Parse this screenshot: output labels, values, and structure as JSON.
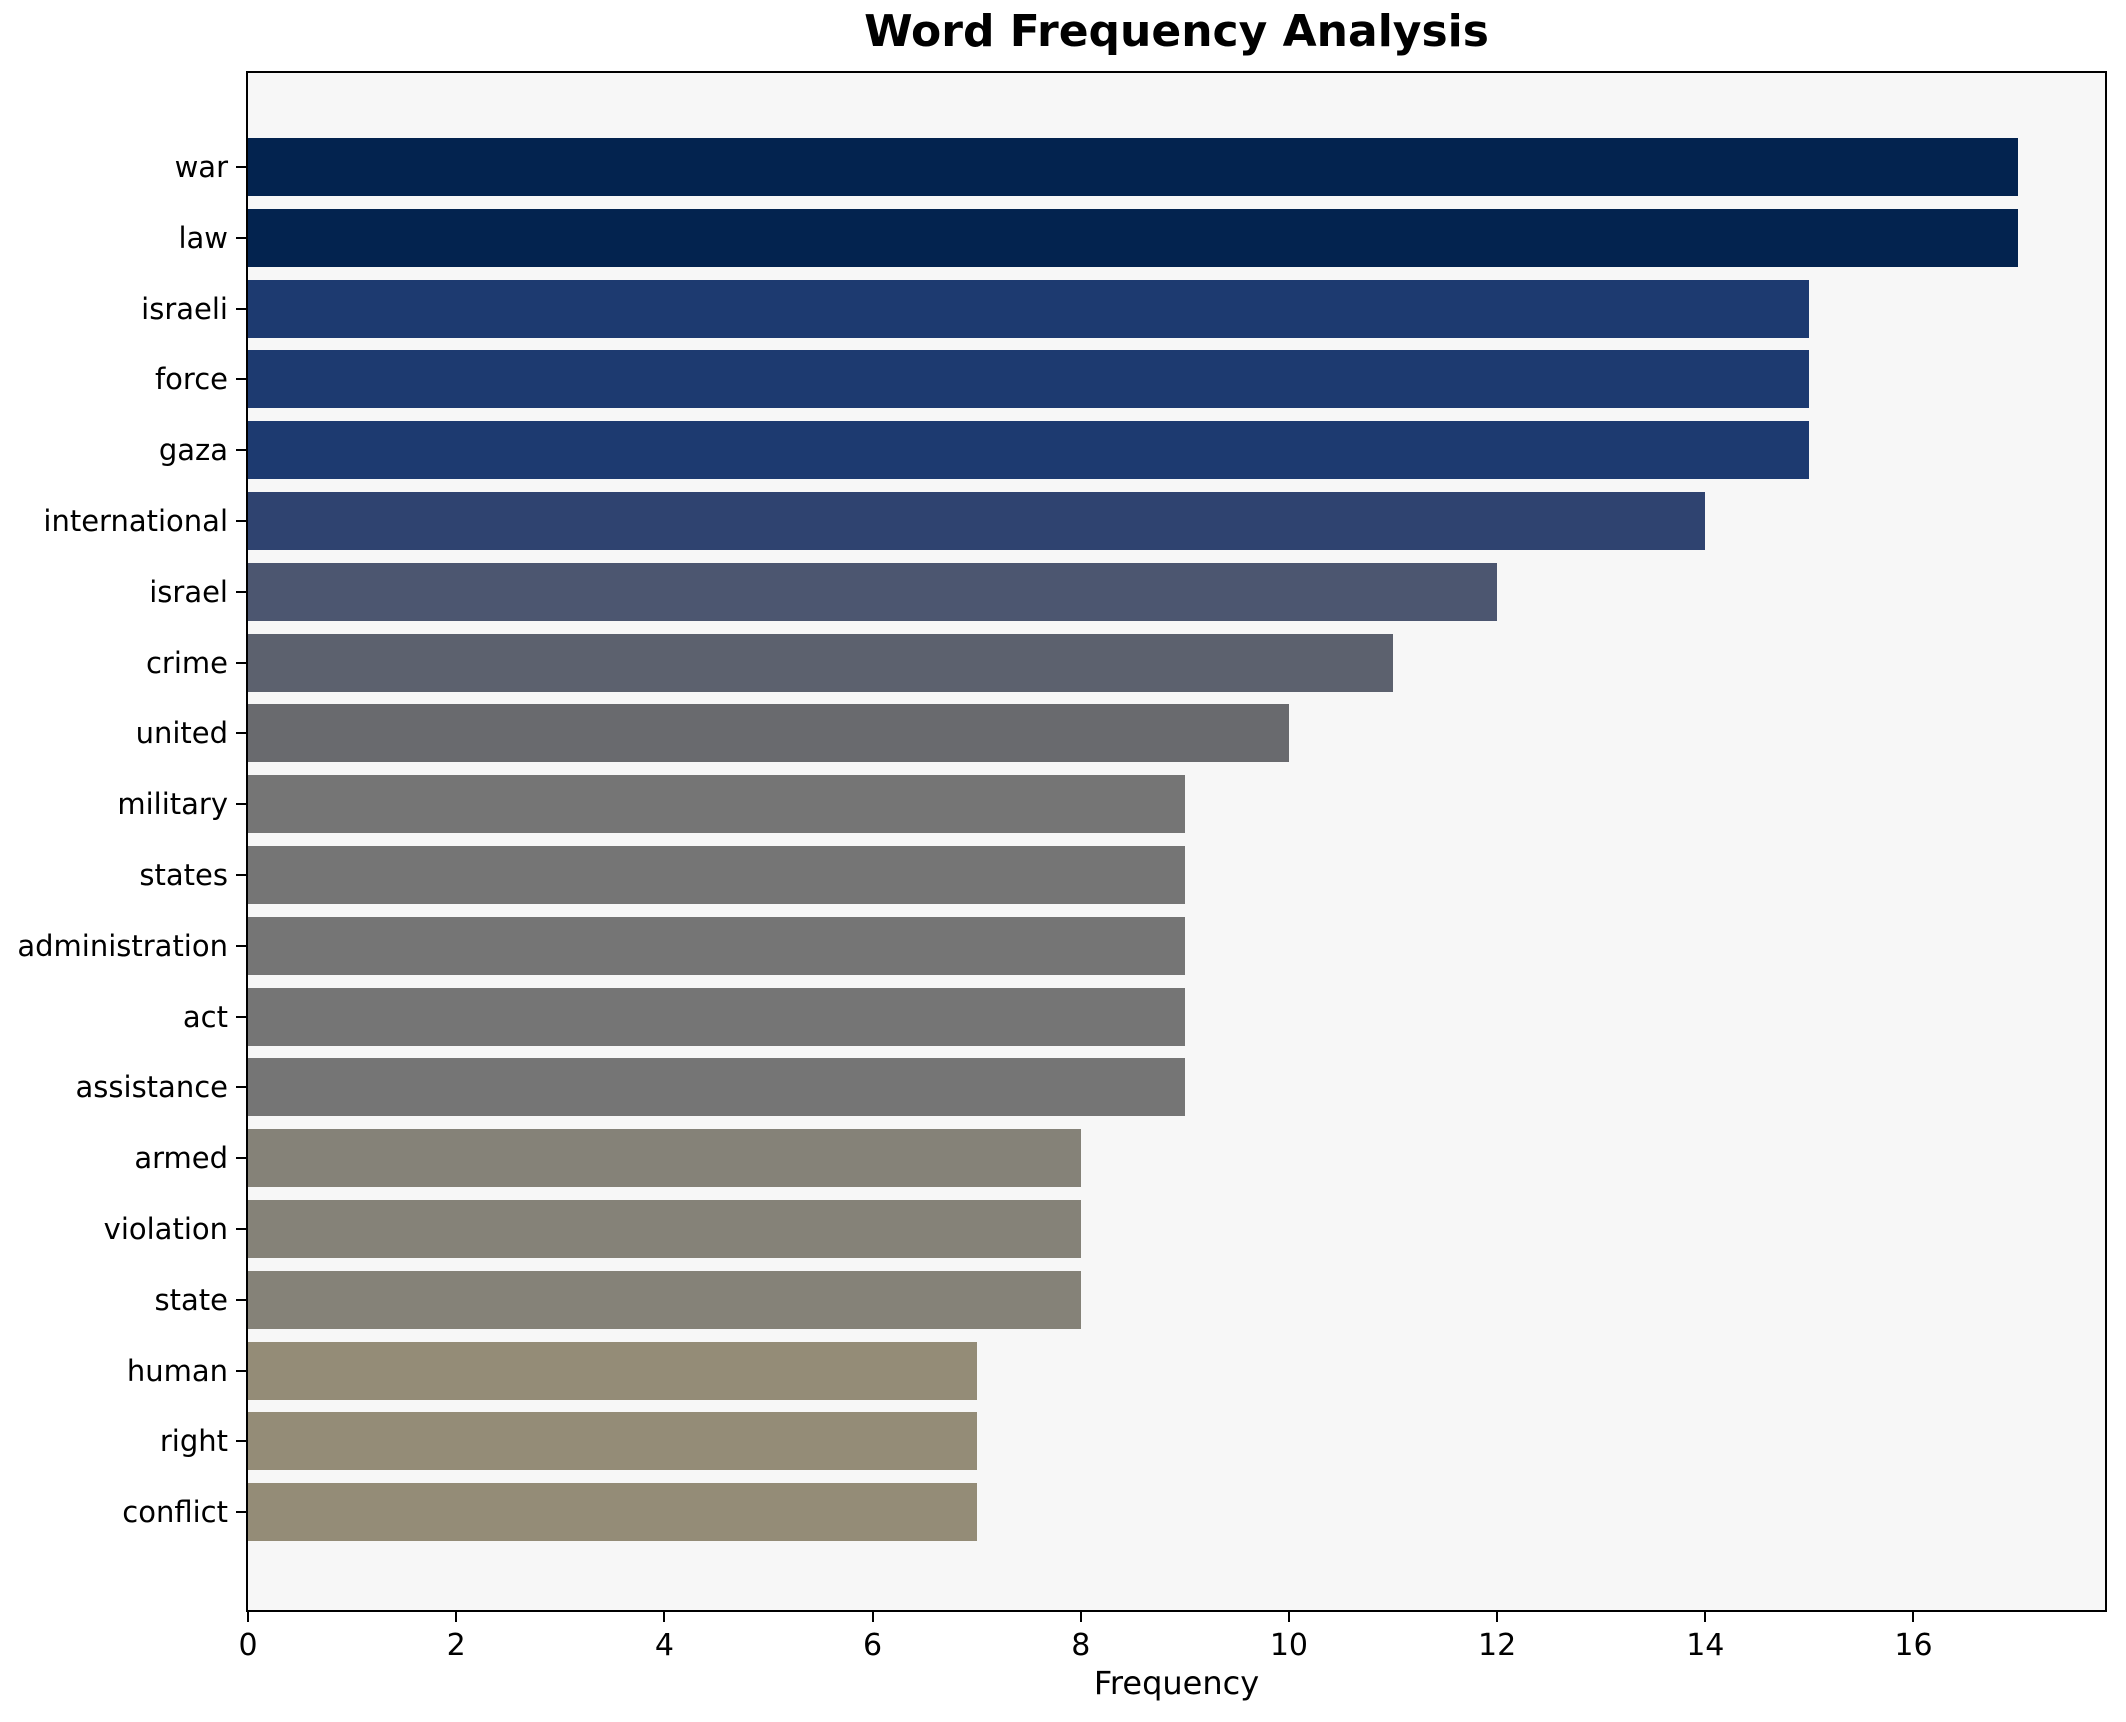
{
  "chart_data": {
    "type": "bar",
    "orientation": "horizontal",
    "title": "Word Frequency Analysis",
    "xlabel": "Frequency",
    "ylabel": "",
    "categories": [
      "war",
      "law",
      "israeli",
      "force",
      "gaza",
      "international",
      "israel",
      "crime",
      "united",
      "military",
      "states",
      "administration",
      "act",
      "assistance",
      "armed",
      "violation",
      "state",
      "human",
      "right",
      "conflict"
    ],
    "values": [
      17,
      17,
      15,
      15,
      15,
      14,
      12,
      11,
      10,
      9,
      9,
      9,
      9,
      9,
      8,
      8,
      8,
      7,
      7,
      7
    ],
    "bar_colors": [
      "#03234f",
      "#03234f",
      "#1d3a70",
      "#1d3a70",
      "#1d3a70",
      "#2f4370",
      "#4c5670",
      "#5c616e",
      "#696a6e",
      "#757575",
      "#757575",
      "#757575",
      "#757575",
      "#757575",
      "#858278",
      "#858278",
      "#858278",
      "#948c77",
      "#948c77",
      "#948c77"
    ],
    "xticks": [
      0,
      2,
      4,
      6,
      8,
      10,
      12,
      14,
      16
    ],
    "xlim": [
      0,
      17.84
    ],
    "grid": false,
    "legend": "none",
    "plot_background": "#f7f7f7",
    "figure_background": "#ffffff",
    "spine_color": "#000000"
  }
}
